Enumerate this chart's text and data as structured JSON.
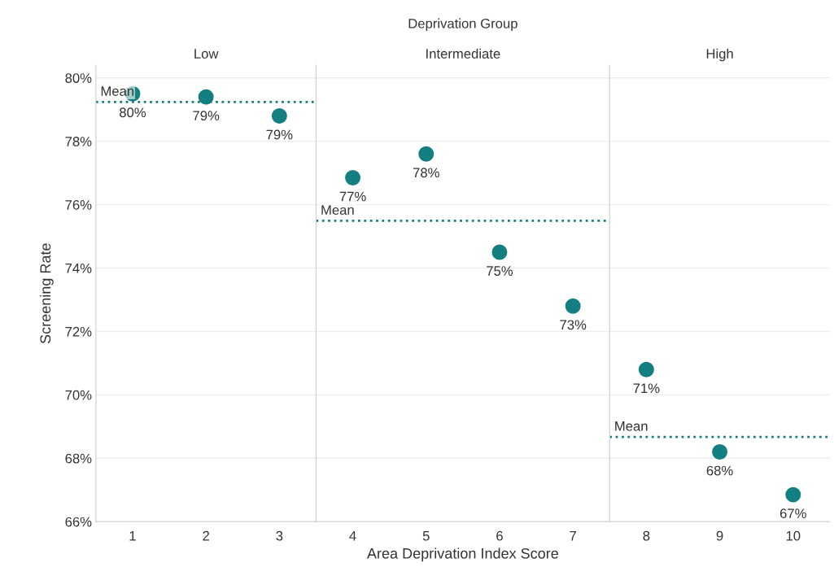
{
  "chart_data": [
    {
      "type": "scatter",
      "title": "Low",
      "ylabel": "Screening Rate",
      "categories": [
        "1",
        "2",
        "3"
      ],
      "color": "#147f80",
      "values": [
        79.5,
        79.4,
        78.8
      ],
      "value_labels": [
        "80%",
        "79%",
        "79%"
      ],
      "ylim": [
        66,
        80.4
      ],
      "yticks": [
        {
          "value": 66,
          "label": "66%"
        },
        {
          "value": 68,
          "label": "68%"
        },
        {
          "value": 70,
          "label": "70%"
        },
        {
          "value": 72,
          "label": "72%"
        },
        {
          "value": 74,
          "label": "74%"
        },
        {
          "value": 76,
          "label": "76%"
        },
        {
          "value": 78,
          "label": "78%"
        },
        {
          "value": 80,
          "label": "80%"
        }
      ],
      "grid": "y",
      "marker": "circle",
      "ref_lines": [
        {
          "axis": "y",
          "value": 79.24,
          "label": "Mean",
          "color": "#147f80",
          "line_style": "dotted"
        }
      ]
    },
    {
      "type": "scatter",
      "title": "Intermediate",
      "xlabel": "Area Deprivation Index Score",
      "annotations": [
        "Deprivation Group"
      ],
      "categories": [
        "4",
        "5",
        "6",
        "7"
      ],
      "color": "#147f80",
      "values": [
        76.85,
        77.6,
        74.5,
        72.8
      ],
      "value_labels": [
        "77%",
        "78%",
        "75%",
        "73%"
      ],
      "ylim": [
        66,
        80.4
      ],
      "yticks": [
        66,
        68,
        70,
        72,
        74,
        76,
        78,
        80
      ],
      "tick_labels": "x",
      "grid": "y",
      "marker": "circle",
      "ref_lines": [
        {
          "axis": "y",
          "value": 75.49,
          "label": "Mean",
          "color": "#147f80",
          "line_style": "dotted"
        }
      ]
    },
    {
      "type": "scatter",
      "title": "High",
      "categories": [
        "8",
        "9",
        "10"
      ],
      "color": "#147f80",
      "values": [
        70.8,
        68.2,
        66.85
      ],
      "value_labels": [
        "71%",
        "68%",
        "67%"
      ],
      "ylim": [
        66,
        80.4
      ],
      "yticks": [
        66,
        68,
        70,
        72,
        74,
        76,
        78,
        80
      ],
      "tick_labels": "x",
      "grid": "y",
      "marker": "circle",
      "ref_lines": [
        {
          "axis": "y",
          "value": 68.67,
          "label": "Mean",
          "color": "#147f80",
          "line_style": "dotted"
        }
      ]
    }
  ]
}
